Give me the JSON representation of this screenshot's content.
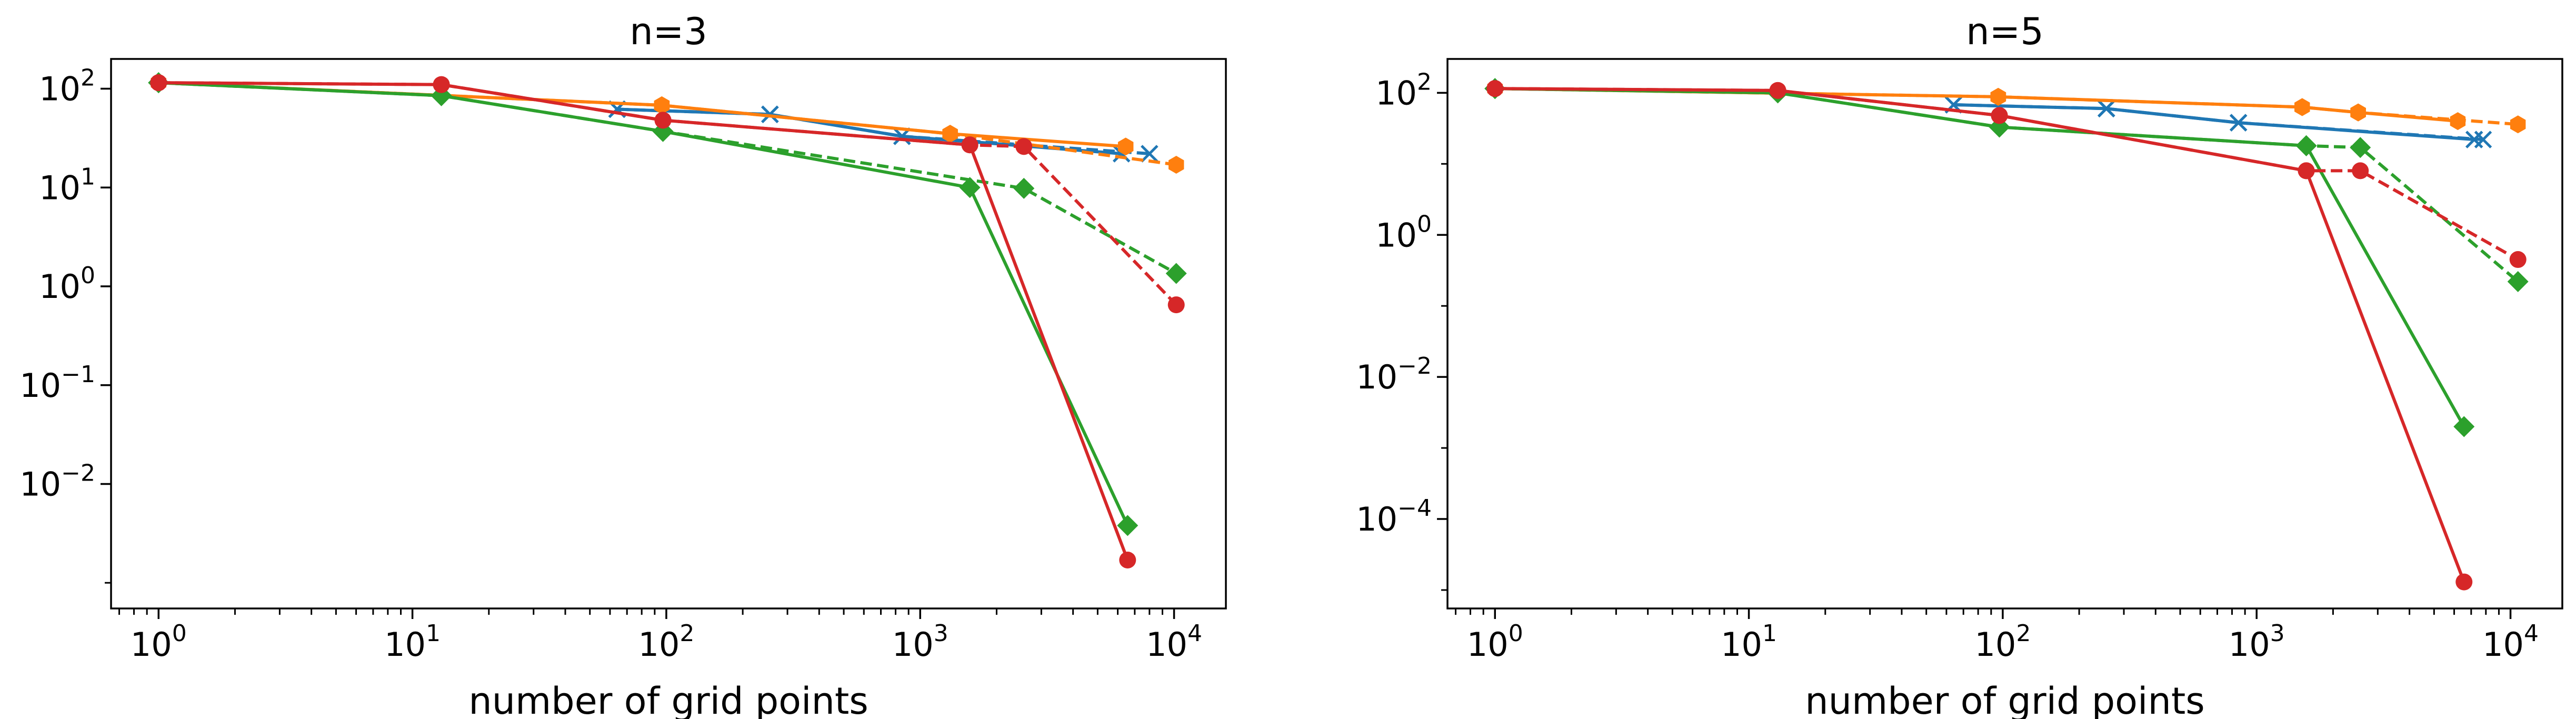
{
  "chart_data": [
    {
      "type": "line",
      "title": "n=3",
      "xlabel": "number of grid points",
      "ylabel": "",
      "xscale": "log",
      "yscale": "log",
      "xlim": [
        0.65,
        16000
      ],
      "ylim": [
        0.00055,
        200
      ],
      "xticks": [
        1,
        10,
        100,
        1000,
        10000
      ],
      "xtick_labels": [
        {
          "base": "10",
          "exp": "0"
        },
        {
          "base": "10",
          "exp": "1"
        },
        {
          "base": "10",
          "exp": "2"
        },
        {
          "base": "10",
          "exp": "3"
        },
        {
          "base": "10",
          "exp": "4"
        }
      ],
      "yticks": [
        0.01,
        0.1,
        1,
        10,
        100
      ],
      "ytick_labels": [
        {
          "base": "10",
          "exp": "−2"
        },
        {
          "base": "10",
          "exp": "−1"
        },
        {
          "base": "10",
          "exp": "0"
        },
        {
          "base": "10",
          "exp": "1"
        },
        {
          "base": "10",
          "exp": "2"
        }
      ],
      "grid": false,
      "legend": "none",
      "series": [
        {
          "color": "#1f77b4",
          "dash": "solid",
          "marker": "x",
          "x": [
            64,
            256,
            848,
            6208
          ],
          "y": [
            62,
            55,
            33,
            22
          ]
        },
        {
          "color": "#1f77b4",
          "dash": "dashed",
          "marker": "x",
          "x": [
            64,
            256,
            848,
            8000
          ],
          "y": [
            62,
            55,
            33,
            22
          ]
        },
        {
          "color": "#ff7f0e",
          "dash": "solid",
          "marker": "hexagon",
          "x": [
            1,
            96,
            1312,
            6448
          ],
          "y": [
            115,
            68,
            35,
            26
          ]
        },
        {
          "color": "#ff7f0e",
          "dash": "dashed",
          "marker": "hexagon",
          "x": [
            1,
            96,
            1312,
            10200
          ],
          "y": [
            115,
            68,
            35,
            17
          ]
        },
        {
          "color": "#2ca02c",
          "dash": "solid",
          "marker": "diamond",
          "x": [
            1,
            13,
            97,
            1569,
            6561
          ],
          "y": [
            115,
            85,
            37,
            10,
            0.0038
          ]
        },
        {
          "color": "#2ca02c",
          "dash": "dashed",
          "marker": "diamond",
          "x": [
            1,
            13,
            97,
            2561,
            10200
          ],
          "y": [
            115,
            85,
            37,
            9.8,
            1.35
          ]
        },
        {
          "color": "#d62728",
          "dash": "solid",
          "marker": "circle",
          "x": [
            1,
            13,
            97,
            1569,
            6561
          ],
          "y": [
            115,
            110,
            48,
            27,
            0.0017
          ]
        },
        {
          "color": "#d62728",
          "dash": "dashed",
          "marker": "circle",
          "x": [
            1,
            13,
            97,
            1569,
            2561,
            10200
          ],
          "y": [
            115,
            110,
            48,
            27,
            26,
            0.65
          ]
        }
      ]
    },
    {
      "type": "line",
      "title": "n=5",
      "xlabel": "number of grid points",
      "ylabel": "",
      "xscale": "log",
      "yscale": "log",
      "xlim": [
        0.65,
        16000
      ],
      "ylim": [
        5.5e-06,
        300
      ],
      "xticks": [
        1,
        10,
        100,
        1000,
        10000
      ],
      "xtick_labels": [
        {
          "base": "10",
          "exp": "0"
        },
        {
          "base": "10",
          "exp": "1"
        },
        {
          "base": "10",
          "exp": "2"
        },
        {
          "base": "10",
          "exp": "3"
        },
        {
          "base": "10",
          "exp": "4"
        }
      ],
      "yticks": [
        0.0001,
        0.01,
        1,
        100
      ],
      "ytick_labels": [
        {
          "base": "10",
          "exp": "−4"
        },
        {
          "base": "10",
          "exp": "−2"
        },
        {
          "base": "10",
          "exp": "0"
        },
        {
          "base": "10",
          "exp": "2"
        }
      ],
      "grid": false,
      "legend": "none",
      "series": [
        {
          "color": "#1f77b4",
          "dash": "solid",
          "marker": "x",
          "x": [
            64,
            256,
            848,
            7200
          ],
          "y": [
            68,
            60,
            38,
            22
          ]
        },
        {
          "color": "#1f77b4",
          "dash": "dashed",
          "marker": "x",
          "x": [
            64,
            256,
            848,
            7800
          ],
          "y": [
            68,
            60,
            38,
            22
          ]
        },
        {
          "color": "#ff7f0e",
          "dash": "solid",
          "marker": "hexagon",
          "x": [
            1,
            96,
            1512,
            2512,
            6200
          ],
          "y": [
            115,
            88,
            63,
            53,
            40
          ]
        },
        {
          "color": "#ff7f0e",
          "dash": "dashed",
          "marker": "hexagon",
          "x": [
            1,
            96,
            1512,
            2512,
            10700
          ],
          "y": [
            115,
            88,
            63,
            53,
            36
          ]
        },
        {
          "color": "#2ca02c",
          "dash": "solid",
          "marker": "diamond",
          "x": [
            1,
            13,
            97,
            1569,
            6561
          ],
          "y": [
            115,
            100,
            33,
            18,
            0.002
          ]
        },
        {
          "color": "#2ca02c",
          "dash": "dashed",
          "marker": "diamond",
          "x": [
            1,
            13,
            97,
            1569,
            2561,
            10700
          ],
          "y": [
            115,
            100,
            33,
            18,
            17,
            0.22
          ]
        },
        {
          "color": "#d62728",
          "dash": "solid",
          "marker": "circle",
          "x": [
            1,
            13,
            97,
            1569,
            6561
          ],
          "y": [
            115,
            108,
            48,
            8,
            1.3e-05
          ]
        },
        {
          "color": "#d62728",
          "dash": "dashed",
          "marker": "circle",
          "x": [
            1,
            13,
            97,
            1569,
            2561,
            10700
          ],
          "y": [
            115,
            108,
            48,
            8,
            8,
            0.45
          ]
        }
      ]
    }
  ]
}
